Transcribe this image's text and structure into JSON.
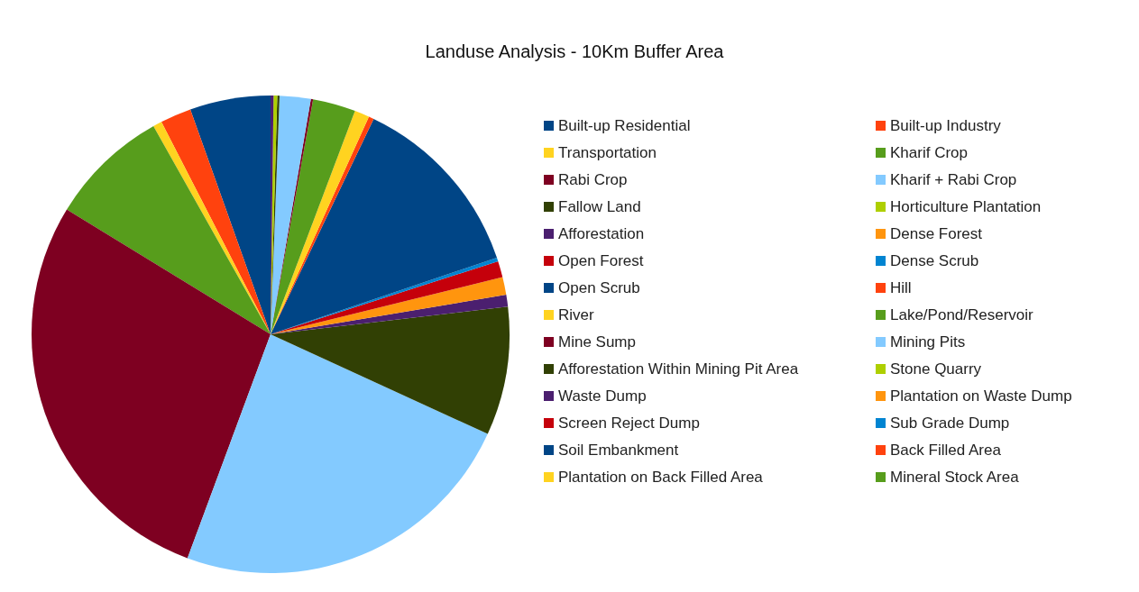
{
  "chart_data": {
    "type": "pie",
    "title": "Landuse Analysis - 10Km Buffer Area",
    "categories": [
      "Built-up Residential",
      "Built-up Industry",
      "Transportation",
      "Kharif Crop",
      "Rabi Crop",
      "Kharif + Rabi Crop",
      "Fallow Land",
      "Horticulture Plantation",
      "Afforestation",
      "Dense Forest",
      "Open Forest",
      "Dense Scrub",
      "Open Scrub",
      "Hill",
      "River",
      "Lake/Pond/Reservoir",
      "Mine Sump",
      "Mining Pits",
      "Afforestation Within Mining Pit Area",
      "Stone Quarry",
      "Waste Dump",
      "Plantation on Waste Dump",
      "Screen Reject Dump",
      "Sub Grade Dump",
      "Soil Embankment",
      "Back Filled Area",
      "Plantation on Back Filled Area",
      "Mineral Stock Area"
    ],
    "values": [
      5.45,
      2.1,
      0.6,
      8.1,
      28.1,
      23.8,
      8.7,
      0,
      0.8,
      1.2,
      1.1,
      0.25,
      12.7,
      0.35,
      1.0,
      2.9,
      0.15,
      2.1,
      0.15,
      0.25,
      0.2,
      0,
      0,
      0,
      0,
      0,
      0,
      0
    ],
    "colors": [
      "#004586",
      "#ff420e",
      "#ffd320",
      "#579d1c",
      "#7e0021",
      "#83caff",
      "#314004",
      "#aecf00",
      "#4b1f6f",
      "#ff950e",
      "#c5000b",
      "#0084d1",
      "#004586",
      "#ff420e",
      "#ffd320",
      "#579d1c",
      "#7e0021",
      "#83caff",
      "#314004",
      "#aecf00",
      "#4b1f6f",
      "#ff950e",
      "#c5000b",
      "#0084d1",
      "#004586",
      "#ff420e",
      "#ffd320",
      "#579d1c"
    ],
    "legend": "right"
  }
}
